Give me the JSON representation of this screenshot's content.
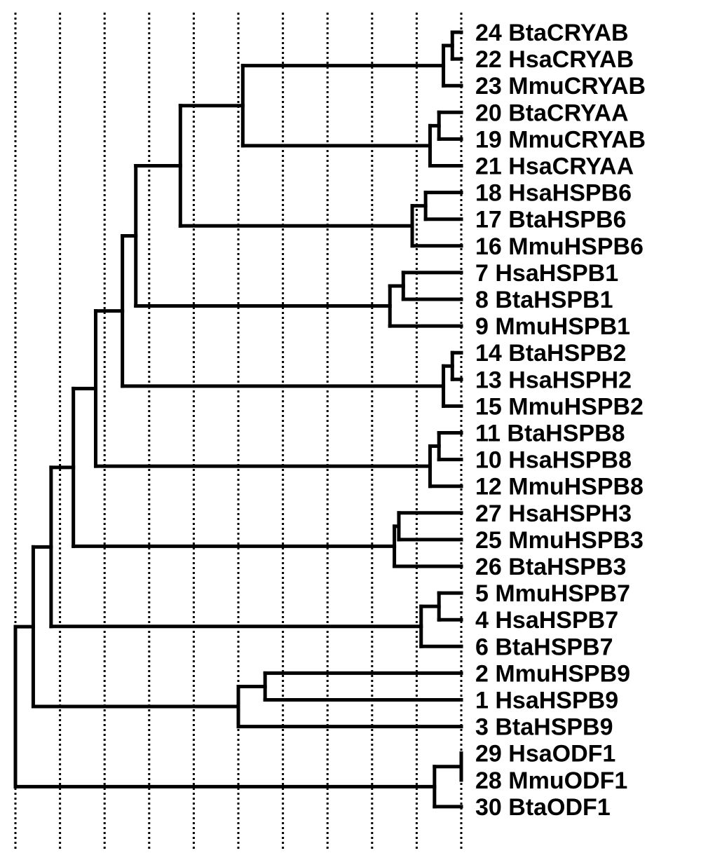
{
  "leaves": [
    {
      "id": "24",
      "label": "24 BtaCRYAB"
    },
    {
      "id": "22",
      "label": "22 HsaCRYAB"
    },
    {
      "id": "23",
      "label": "23 MmuCRYAB"
    },
    {
      "id": "20",
      "label": "20 BtaCRYAA"
    },
    {
      "id": "19",
      "label": "19 MmuCRYAB"
    },
    {
      "id": "21",
      "label": "21 HsaCRYAA"
    },
    {
      "id": "18",
      "label": "18 HsaHSPB6"
    },
    {
      "id": "17",
      "label": "17 BtaHSPB6"
    },
    {
      "id": "16",
      "label": "16 MmuHSPB6"
    },
    {
      "id": "7",
      "label": "7 HsaHSPB1"
    },
    {
      "id": "8",
      "label": "8 BtaHSPB1"
    },
    {
      "id": "9",
      "label": "9 MmuHSPB1"
    },
    {
      "id": "14",
      "label": "14 BtaHSPB2"
    },
    {
      "id": "13",
      "label": "13 HsaHSPH2"
    },
    {
      "id": "15",
      "label": "15 MmuHSPB2"
    },
    {
      "id": "11",
      "label": "11 BtaHSPB8"
    },
    {
      "id": "10",
      "label": "10 HsaHSPB8"
    },
    {
      "id": "12",
      "label": "12 MmuHSPB8"
    },
    {
      "id": "27",
      "label": "27 HsaHSPH3"
    },
    {
      "id": "25",
      "label": "25 MmuHSPB3"
    },
    {
      "id": "26",
      "label": "26 BtaHSPB3"
    },
    {
      "id": "5",
      "label": "5 MmuHSPB7"
    },
    {
      "id": "4",
      "label": "4 HsaHSPB7"
    },
    {
      "id": "6",
      "label": "6 BtaHSPB7"
    },
    {
      "id": "2",
      "label": "2 MmuHSPB9"
    },
    {
      "id": "1",
      "label": "1 HsaHSPB9"
    },
    {
      "id": "3",
      "label": "3 BtaHSPB9"
    },
    {
      "id": "29",
      "label": "29 HsaODF1"
    },
    {
      "id": "28",
      "label": "28 MmuODF1"
    },
    {
      "id": "30",
      "label": "30 BtaODF1"
    }
  ],
  "tree": {
    "node": 0.0,
    "children": [
      {
        "node": 0.04,
        "children": [
          {
            "node": 0.08,
            "children": [
              {
                "node": 0.13,
                "children": [
                  {
                    "node": 0.18,
                    "children": [
                      {
                        "node": 0.24,
                        "children": [
                          {
                            "node": 0.27,
                            "children": [
                              {
                                "node": 0.37,
                                "children": [
                                  {
                                    "node": 0.51,
                                    "children": [
                                      {
                                        "node": 0.96,
                                        "children": [
                                          {
                                            "node": 0.98,
                                            "children": [
                                              "24",
                                              "22"
                                            ]
                                          },
                                          "23"
                                        ]
                                      },
                                      {
                                        "node": 0.93,
                                        "children": [
                                          {
                                            "node": 0.95,
                                            "children": [
                                              "20",
                                              "19"
                                            ]
                                          },
                                          "21"
                                        ]
                                      }
                                    ]
                                  },
                                  {
                                    "node": 0.89,
                                    "children": [
                                      {
                                        "node": 0.92,
                                        "children": [
                                          "18",
                                          "17"
                                        ]
                                      },
                                      "16"
                                    ]
                                  }
                                ]
                              },
                              {
                                "node": 0.84,
                                "children": [
                                  {
                                    "node": 0.87,
                                    "children": [
                                      "7",
                                      "8"
                                    ]
                                  },
                                  "9"
                                ]
                              }
                            ]
                          },
                          {
                            "node": 0.96,
                            "children": [
                              {
                                "node": 0.98,
                                "children": [
                                  "14",
                                  "13"
                                ]
                              },
                              "15"
                            ]
                          }
                        ]
                      },
                      {
                        "node": 0.93,
                        "children": [
                          {
                            "node": 0.95,
                            "children": [
                              "11",
                              "10"
                            ]
                          },
                          "12"
                        ]
                      }
                    ]
                  },
                  {
                    "node": 0.85,
                    "children": [
                      {
                        "node": 0.86,
                        "children": [
                          "27",
                          "25"
                        ]
                      },
                      "26"
                    ]
                  }
                ]
              },
              {
                "node": 0.91,
                "children": [
                  {
                    "node": 0.95,
                    "children": [
                      "5",
                      "4"
                    ]
                  },
                  "6"
                ]
              }
            ]
          },
          {
            "node": 0.5,
            "children": [
              {
                "node": 0.56,
                "children": [
                  "2",
                  "1"
                ]
              },
              "3"
            ]
          }
        ]
      },
      {
        "node": 0.94,
        "children": [
          {
            "node": 1.0,
            "children": [
              "29",
              "28"
            ]
          },
          "30"
        ]
      }
    ]
  }
}
